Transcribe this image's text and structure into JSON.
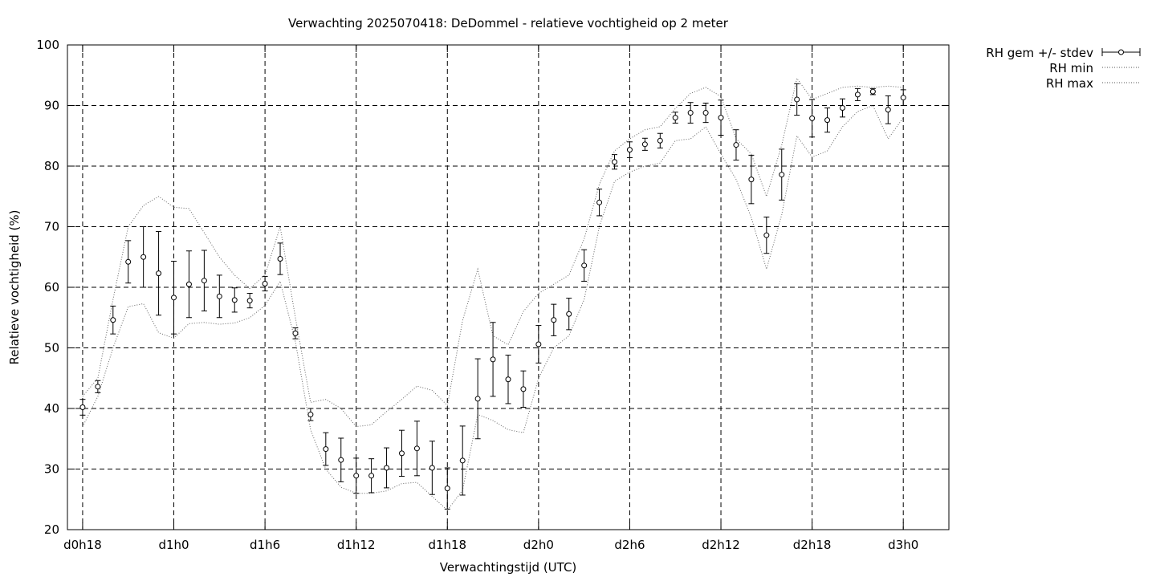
{
  "chart_data": {
    "type": "scatter",
    "title": "Verwachting 2025070418: DeDommel - relatieve vochtigheid op 2 meter",
    "xlabel": "Verwachtingstijd (UTC)",
    "ylabel": "Relatieve vochtigheid (%)",
    "xlim": [
      -1,
      57
    ],
    "ylim": [
      20,
      100
    ],
    "yticks": [
      20,
      30,
      40,
      50,
      60,
      70,
      80,
      90,
      100
    ],
    "xticks": [
      {
        "x": 0,
        "label": "d0h18"
      },
      {
        "x": 6,
        "label": "d1h0"
      },
      {
        "x": 12,
        "label": "d1h6"
      },
      {
        "x": 18,
        "label": "d1h12"
      },
      {
        "x": 24,
        "label": "d1h18"
      },
      {
        "x": 30,
        "label": "d2h0"
      },
      {
        "x": 36,
        "label": "d2h6"
      },
      {
        "x": 42,
        "label": "d2h12"
      },
      {
        "x": 48,
        "label": "d2h18"
      },
      {
        "x": 54,
        "label": "d3h0"
      }
    ],
    "grid": true,
    "legend_position": "outside-top-right",
    "series": [
      {
        "name": "RH gem +/- stdev",
        "style": "points-errorbars",
        "x": [
          0,
          1,
          2,
          3,
          4,
          5,
          6,
          7,
          8,
          9,
          10,
          11,
          12,
          13,
          14,
          15,
          16,
          17,
          18,
          19,
          20,
          21,
          22,
          23,
          24,
          25,
          26,
          27,
          28,
          29,
          30,
          31,
          32,
          33,
          34,
          35,
          36,
          37,
          38,
          39,
          40,
          41,
          42,
          43,
          44,
          45,
          46,
          47,
          48,
          49,
          50,
          51,
          52,
          53,
          54
        ],
        "y": [
          40.2,
          43.6,
          54.6,
          64.2,
          65.0,
          62.3,
          58.3,
          60.5,
          61.1,
          58.5,
          57.9,
          57.8,
          60.6,
          64.7,
          52.4,
          39.0,
          33.3,
          31.5,
          28.9,
          28.9,
          30.2,
          32.6,
          33.4,
          30.2,
          26.8,
          31.4,
          41.6,
          48.1,
          44.8,
          43.2,
          50.6,
          54.6,
          55.6,
          63.6,
          74.0,
          80.7,
          82.7,
          83.6,
          84.2,
          88.0,
          88.8,
          88.8,
          88.0,
          83.5,
          77.8,
          68.6,
          78.6,
          91.0,
          87.9,
          87.6,
          89.6,
          91.8,
          92.3,
          89.3,
          91.3
        ],
        "yerr": [
          1.3,
          1.0,
          2.3,
          3.5,
          5.0,
          6.9,
          6.0,
          5.5,
          5.0,
          3.5,
          2.0,
          1.2,
          1.2,
          2.6,
          0.9,
          1.0,
          2.7,
          3.6,
          2.9,
          2.8,
          3.3,
          3.8,
          4.5,
          4.4,
          3.4,
          5.7,
          6.6,
          6.1,
          4.0,
          3.0,
          3.1,
          2.6,
          2.6,
          2.6,
          2.2,
          1.2,
          1.3,
          1.0,
          1.2,
          0.9,
          1.7,
          1.6,
          2.9,
          2.5,
          4.0,
          3.0,
          4.2,
          2.6,
          3.1,
          2.0,
          1.5,
          1.0,
          0.5,
          2.3,
          1.3
        ]
      },
      {
        "name": "RH min",
        "style": "dotted-line",
        "x": [
          0,
          1,
          2,
          3,
          4,
          5,
          6,
          7,
          8,
          9,
          10,
          11,
          12,
          13,
          14,
          15,
          16,
          17,
          18,
          19,
          20,
          21,
          22,
          23,
          24,
          25,
          26,
          27,
          28,
          29,
          30,
          31,
          32,
          33,
          34,
          35,
          36,
          37,
          38,
          39,
          40,
          41,
          42,
          43,
          44,
          45,
          46,
          47,
          48,
          49,
          50,
          51,
          52,
          53,
          54
        ],
        "y": [
          37.0,
          42.0,
          50.0,
          56.8,
          57.3,
          52.5,
          51.6,
          54.0,
          54.2,
          53.9,
          54.1,
          55.0,
          57.0,
          61.0,
          51.0,
          36.5,
          30.0,
          27.0,
          26.0,
          26.0,
          26.4,
          27.6,
          27.8,
          25.5,
          23.2,
          26.5,
          39.0,
          38.0,
          36.5,
          36.0,
          45.0,
          50.0,
          52.0,
          58.0,
          70.0,
          77.5,
          79.0,
          80.0,
          80.5,
          84.2,
          84.5,
          86.5,
          82.0,
          77.8,
          71.5,
          63.0,
          72.0,
          85.0,
          81.5,
          82.5,
          86.5,
          89.0,
          90.0,
          84.5,
          88.0
        ]
      },
      {
        "name": "RH max",
        "style": "dotted-line",
        "x": [
          0,
          1,
          2,
          3,
          4,
          5,
          6,
          7,
          8,
          9,
          10,
          11,
          12,
          13,
          14,
          15,
          16,
          17,
          18,
          19,
          20,
          21,
          22,
          23,
          24,
          25,
          26,
          27,
          28,
          29,
          30,
          31,
          32,
          33,
          34,
          35,
          36,
          37,
          38,
          39,
          40,
          41,
          42,
          43,
          44,
          45,
          46,
          47,
          48,
          49,
          50,
          51,
          52,
          53,
          54
        ],
        "y": [
          42.0,
          45.0,
          58.0,
          70.0,
          73.5,
          75.0,
          73.2,
          73.0,
          69.0,
          65.0,
          62.0,
          59.8,
          62.0,
          70.0,
          55.0,
          41.0,
          41.5,
          40.0,
          37.0,
          37.3,
          39.5,
          41.5,
          43.7,
          43.0,
          40.5,
          54.5,
          63.0,
          52.0,
          50.5,
          56.0,
          59.0,
          60.5,
          62.0,
          68.0,
          77.0,
          82.5,
          84.5,
          86.0,
          86.5,
          89.5,
          92.0,
          93.0,
          91.5,
          84.5,
          82.0,
          75.0,
          83.5,
          94.5,
          91.0,
          92.0,
          93.0,
          93.2,
          93.0,
          93.2,
          93.0
        ]
      }
    ]
  }
}
